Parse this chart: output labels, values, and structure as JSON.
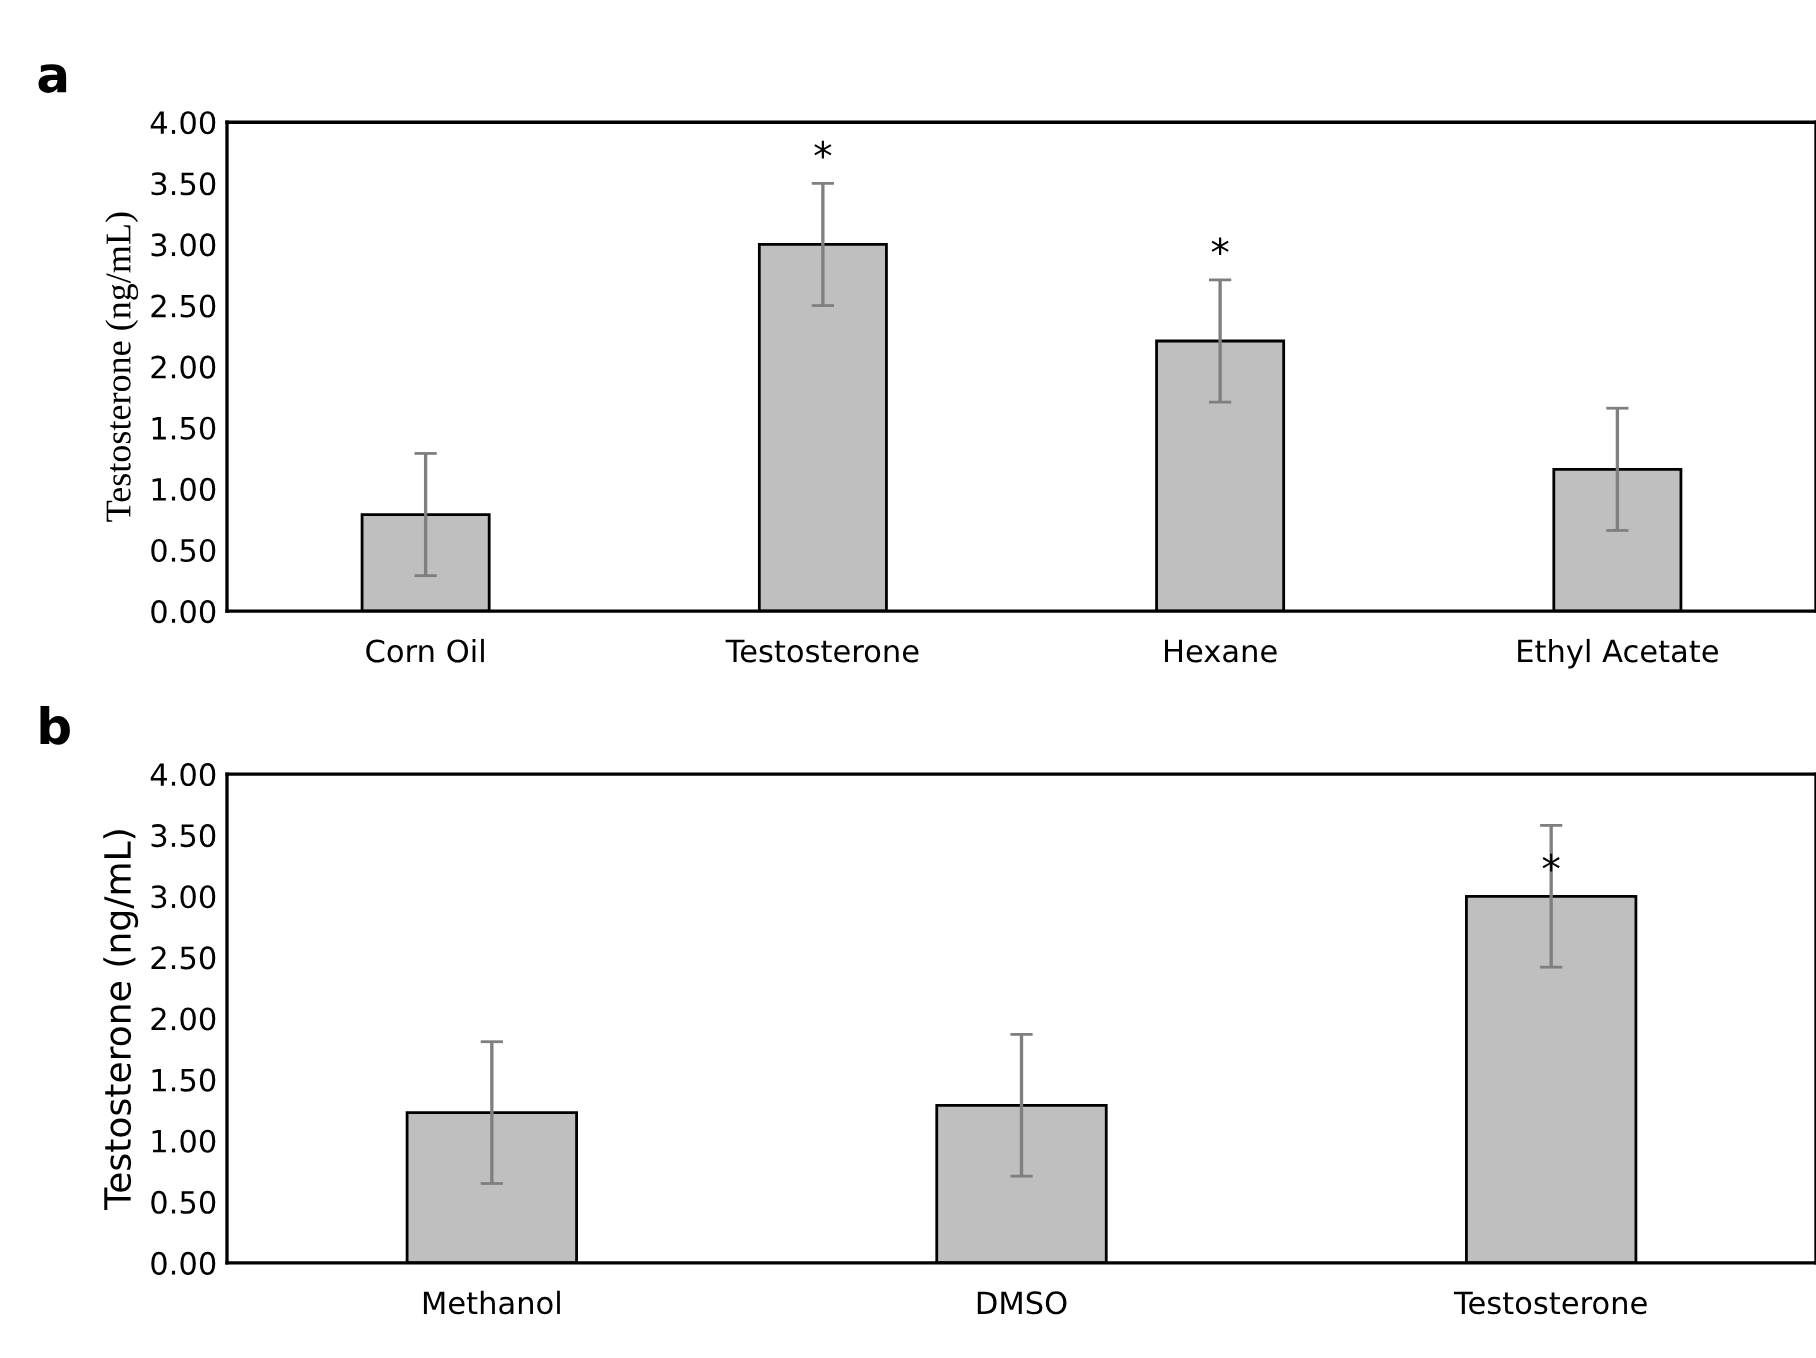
{
  "chart_data": [
    {
      "type": "bar",
      "title": "a",
      "ylabel": "Testosterone (ng/mL)",
      "categories": [
        "Corn Oil",
        "Testosterone",
        "Hexane",
        "Ethyl Acetate"
      ],
      "values": [
        0.79,
        3.0,
        2.21,
        1.16
      ],
      "errors": [
        0.5,
        0.5,
        0.5,
        0.5
      ],
      "color": "#bfbfbf",
      "ylim": [
        0,
        4
      ],
      "yticks": [
        {
          "value": 0,
          "label": "0.00"
        },
        {
          "value": 0.5,
          "label": "0.50"
        },
        {
          "value": 1,
          "label": "1.00"
        },
        {
          "value": 1.5,
          "label": "1.50"
        },
        {
          "value": 2,
          "label": "2.00"
        },
        {
          "value": 2.5,
          "label": "2.50"
        },
        {
          "value": 3,
          "label": "3.00"
        },
        {
          "value": 3.5,
          "label": "3.50"
        },
        {
          "value": 4,
          "label": "4.00"
        }
      ],
      "grid": false,
      "legend": false,
      "annotations": [
        {
          "text": "*",
          "x": "Testosterone",
          "y": 3.5
        },
        {
          "text": "*",
          "x": "Hexane",
          "y": 2.71
        }
      ]
    },
    {
      "type": "bar",
      "title": "b",
      "ylabel": "Testosterone (ng/mL)",
      "categories": [
        "Methanol",
        "DMSO",
        "Testosterone"
      ],
      "values": [
        1.23,
        1.29,
        3.0
      ],
      "errors": [
        0.58,
        0.58,
        0.58
      ],
      "color": "#bfbfbf",
      "ylim": [
        0,
        4
      ],
      "yticks": [
        {
          "value": 0,
          "label": "0.00"
        },
        {
          "value": 0.5,
          "label": "0.50"
        },
        {
          "value": 1,
          "label": "1.00"
        },
        {
          "value": 1.5,
          "label": "1.50"
        },
        {
          "value": 2,
          "label": "2.00"
        },
        {
          "value": 2.5,
          "label": "2.50"
        },
        {
          "value": 3,
          "label": "3.00"
        },
        {
          "value": 3.5,
          "label": "3.50"
        },
        {
          "value": 4,
          "label": "4.00"
        }
      ],
      "grid": false,
      "legend": false,
      "annotations": [
        {
          "text": "*",
          "x": "Testosterone",
          "y": 3.0
        }
      ]
    }
  ]
}
